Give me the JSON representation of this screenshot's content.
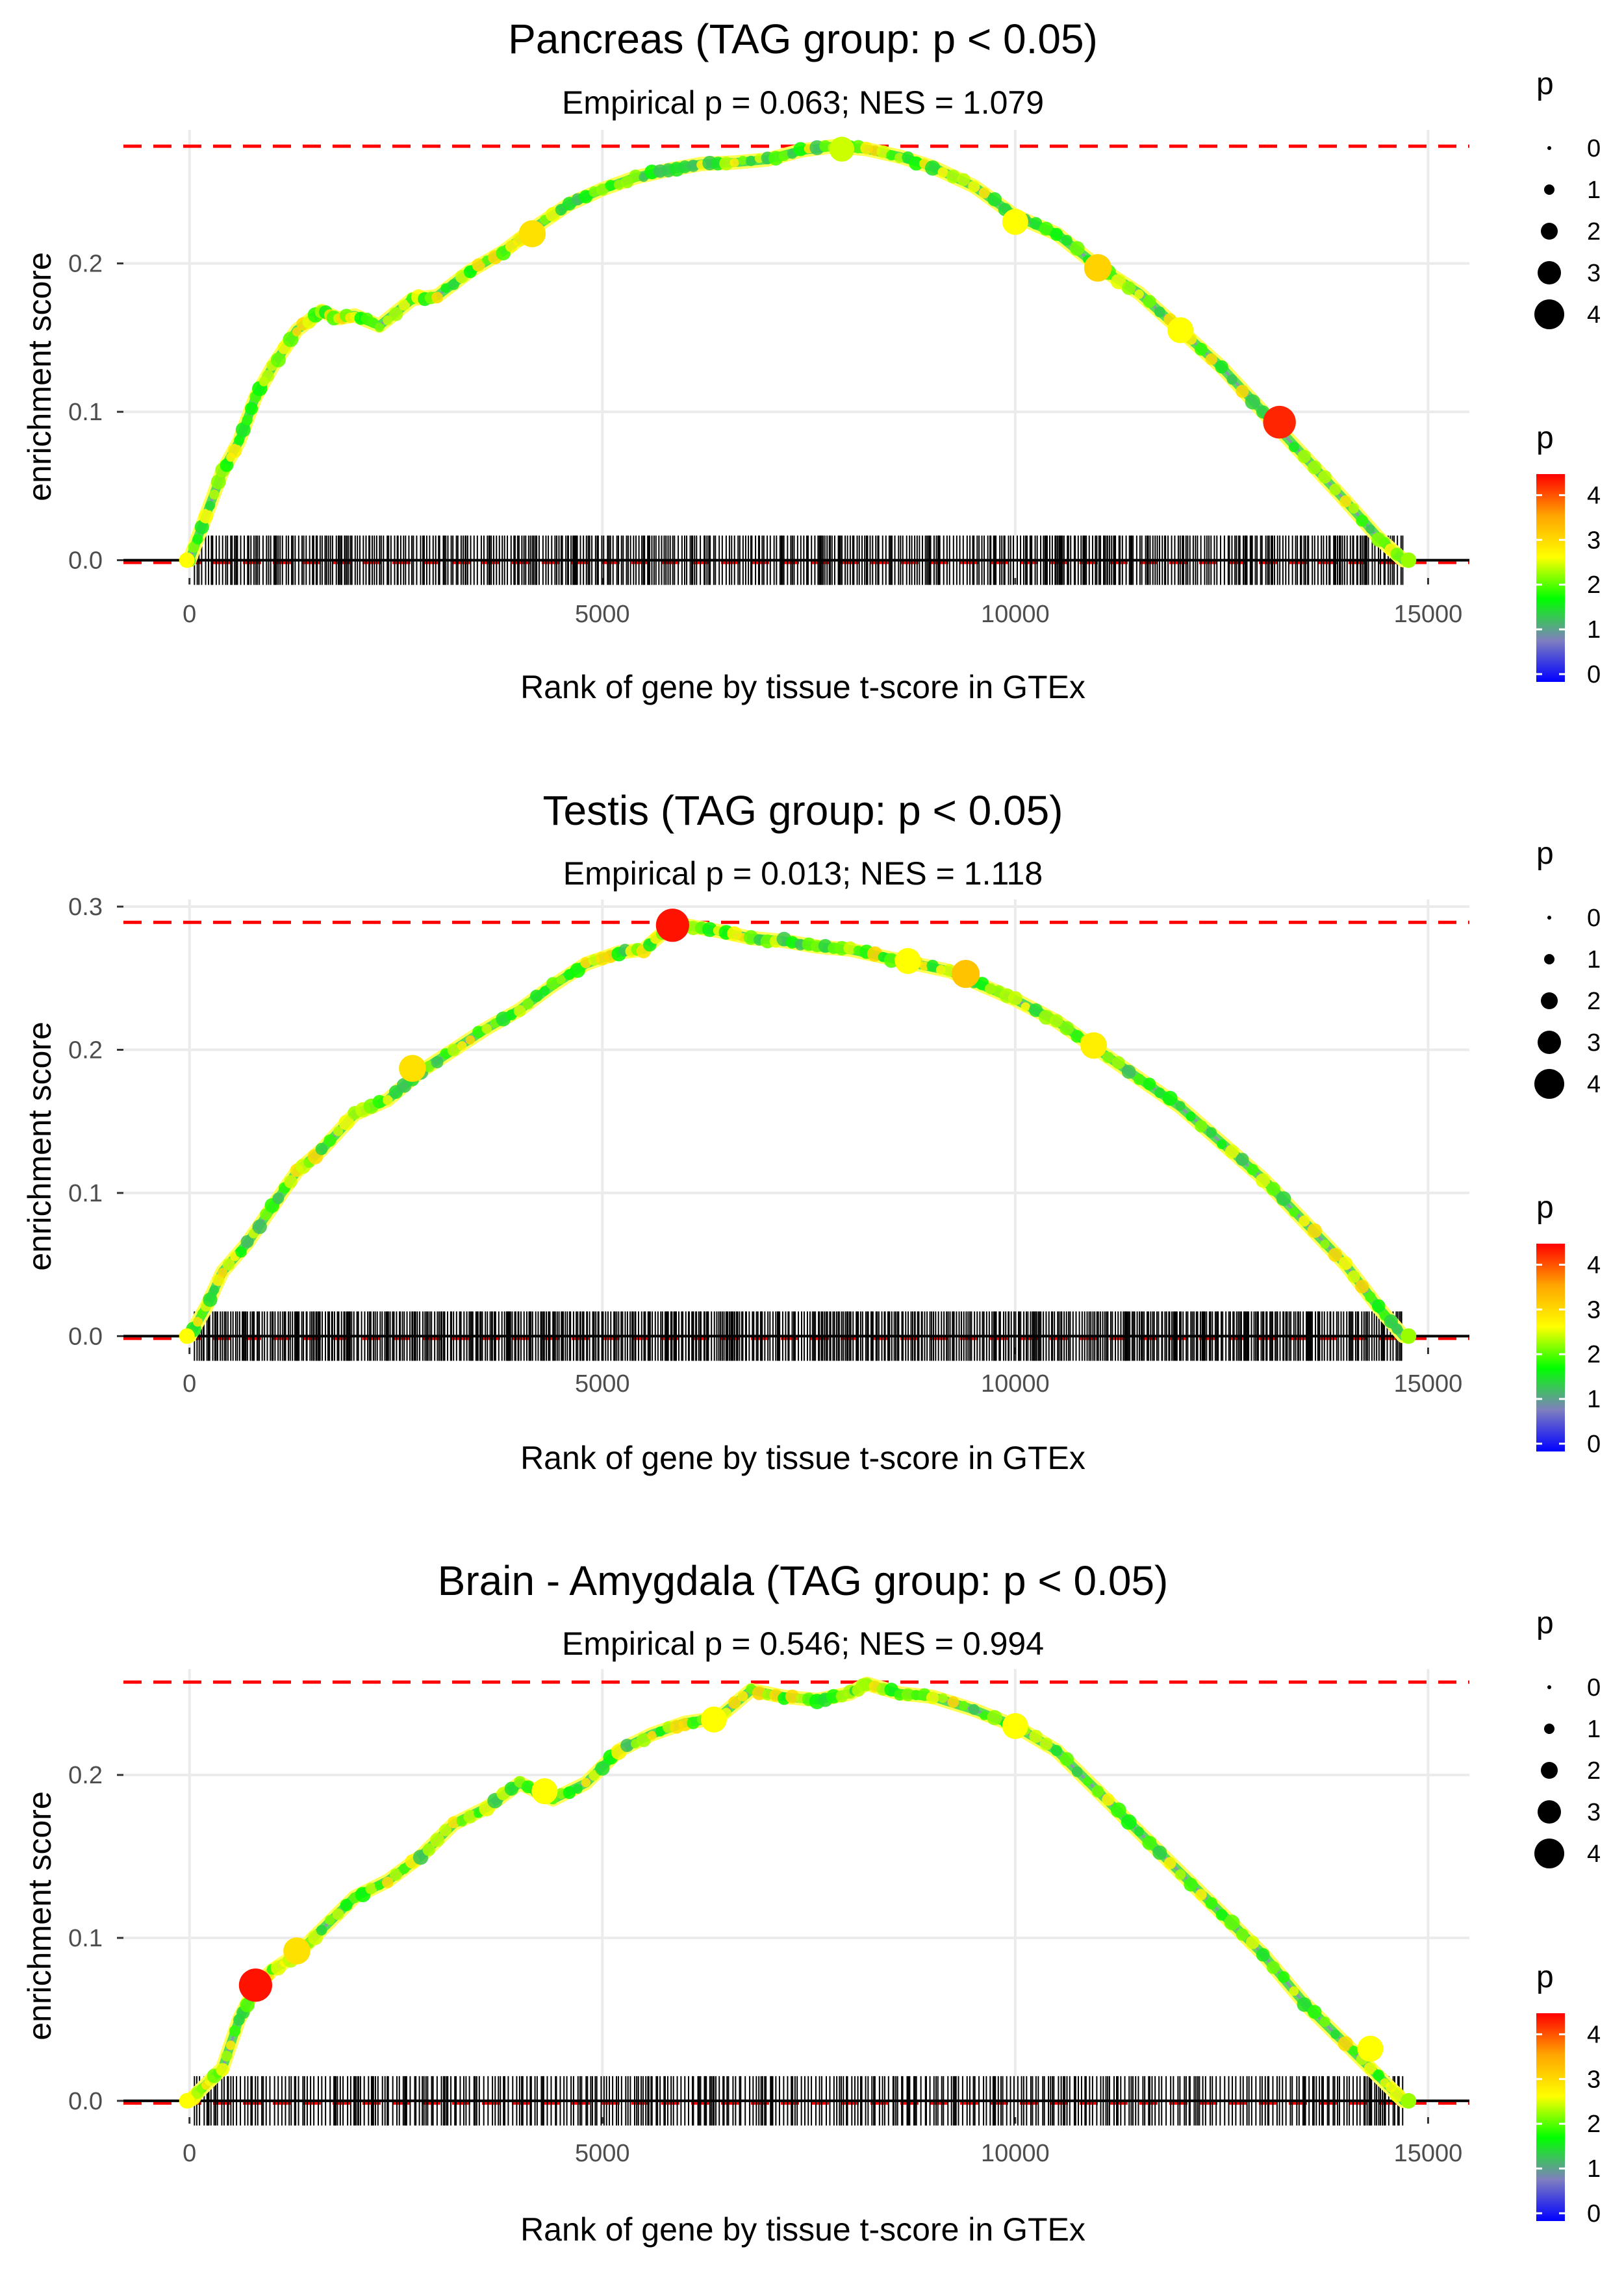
{
  "figure": {
    "xlabel": "Rank of gene by tissue t-score in GTEx",
    "ylabel": "enrichment score",
    "xticks": [
      0,
      5000,
      10000,
      15000
    ],
    "xlim": [
      -800,
      15500
    ],
    "legend": {
      "size_title": "p",
      "size_values": [
        0,
        1,
        2,
        3,
        4
      ],
      "color_title": "p",
      "color_values": [
        0,
        1,
        2,
        3,
        4
      ],
      "gradient_colors": [
        "#0000ff",
        "#7f7fbf",
        "#00ff00",
        "#ffff00",
        "#ffa500",
        "#ff0000"
      ]
    },
    "colors": {
      "ref_line": "#ff0000",
      "curve": "#44dd44",
      "ticks": "#000000",
      "grid": "#ebebeb"
    }
  },
  "chart_data": [
    {
      "type": "line",
      "title": "Pancreas (TAG group: p < 0.05)",
      "subtitle": "Empirical p = 0.063; NES = 1.079",
      "ylim": [
        -0.012,
        0.29
      ],
      "yticks": [
        "0.0",
        "0.1",
        "0.2"
      ],
      "max_es": 0.279,
      "x": [
        0,
        200,
        400,
        600,
        800,
        1000,
        1300,
        1600,
        1800,
        2000,
        2300,
        2700,
        3000,
        3400,
        3800,
        4200,
        4600,
        5000,
        5400,
        5800,
        6200,
        6600,
        7000,
        7400,
        7800,
        8200,
        8600,
        9000,
        9500,
        10000,
        10500,
        11000,
        11500,
        12000,
        12500,
        13000,
        13500,
        14000,
        14400,
        14700
      ],
      "y": [
        0.0,
        0.03,
        0.06,
        0.08,
        0.11,
        0.13,
        0.155,
        0.168,
        0.163,
        0.165,
        0.158,
        0.176,
        0.178,
        0.195,
        0.208,
        0.225,
        0.24,
        0.25,
        0.258,
        0.263,
        0.267,
        0.268,
        0.27,
        0.276,
        0.279,
        0.277,
        0.272,
        0.265,
        0.252,
        0.232,
        0.22,
        0.198,
        0.18,
        0.155,
        0.13,
        0.1,
        0.07,
        0.04,
        0.015,
        0.0
      ],
      "highlights": [
        {
          "x": 4150,
          "y": 0.22,
          "p": 3.2
        },
        {
          "x": 7900,
          "y": 0.277,
          "p": 2.8
        },
        {
          "x": 10000,
          "y": 0.228,
          "p": 3.0
        },
        {
          "x": 11000,
          "y": 0.197,
          "p": 3.3
        },
        {
          "x": 12000,
          "y": 0.155,
          "p": 3.0
        },
        {
          "x": 13200,
          "y": 0.093,
          "p": 4.3
        }
      ],
      "tick_density": 1.0
    },
    {
      "type": "line",
      "title": "Testis (TAG group: p < 0.05)",
      "subtitle": "Empirical p = 0.013; NES = 1.118",
      "ylim": [
        -0.008,
        0.305
      ],
      "yticks": [
        "0.0",
        "0.1",
        "0.2",
        "0.3"
      ],
      "max_es": 0.289,
      "x": [
        0,
        200,
        400,
        700,
        1000,
        1300,
        1600,
        2000,
        2400,
        2800,
        3200,
        3600,
        4000,
        4400,
        4800,
        5200,
        5500,
        5800,
        6000,
        6400,
        6800,
        7200,
        7600,
        8000,
        8400,
        8800,
        9200,
        9600,
        10000,
        10500,
        11000,
        11500,
        12000,
        12500,
        13000,
        13500,
        14000,
        14400,
        14700
      ],
      "y": [
        0.0,
        0.02,
        0.045,
        0.065,
        0.09,
        0.115,
        0.13,
        0.155,
        0.165,
        0.185,
        0.2,
        0.215,
        0.228,
        0.245,
        0.26,
        0.268,
        0.27,
        0.285,
        0.287,
        0.283,
        0.278,
        0.276,
        0.272,
        0.27,
        0.265,
        0.26,
        0.255,
        0.245,
        0.235,
        0.22,
        0.2,
        0.18,
        0.16,
        0.135,
        0.11,
        0.08,
        0.05,
        0.02,
        0.0
      ],
      "highlights": [
        {
          "x": 2700,
          "y": 0.187,
          "p": 3.2
        },
        {
          "x": 5850,
          "y": 0.287,
          "p": 4.4
        },
        {
          "x": 8700,
          "y": 0.262,
          "p": 3.0
        },
        {
          "x": 9400,
          "y": 0.253,
          "p": 3.4
        },
        {
          "x": 10950,
          "y": 0.203,
          "p": 3.1
        }
      ],
      "tick_density": 1.2
    },
    {
      "type": "line",
      "title": "Brain - Amygdala (TAG group: p < 0.05)",
      "subtitle": "Empirical p = 0.546; NES = 0.994",
      "ylim": [
        -0.01,
        0.265
      ],
      "yticks": [
        "0.0",
        "0.1",
        "0.2"
      ],
      "max_es": 0.257,
      "x": [
        0,
        200,
        400,
        600,
        800,
        1000,
        1300,
        1600,
        2000,
        2400,
        2800,
        3200,
        3600,
        4000,
        4400,
        4800,
        5200,
        5600,
        6000,
        6400,
        6800,
        7200,
        7600,
        8000,
        8200,
        8600,
        9000,
        9500,
        10000,
        10500,
        11000,
        11500,
        12000,
        12500,
        13000,
        13500,
        14000,
        14400,
        14700
      ],
      "y": [
        0.0,
        0.01,
        0.02,
        0.05,
        0.07,
        0.08,
        0.09,
        0.105,
        0.125,
        0.135,
        0.15,
        0.17,
        0.18,
        0.195,
        0.185,
        0.195,
        0.215,
        0.225,
        0.232,
        0.235,
        0.252,
        0.248,
        0.246,
        0.25,
        0.256,
        0.25,
        0.248,
        0.24,
        0.23,
        0.215,
        0.19,
        0.165,
        0.14,
        0.115,
        0.09,
        0.06,
        0.035,
        0.015,
        0.0
      ],
      "highlights": [
        {
          "x": 800,
          "y": 0.071,
          "p": 4.4
        },
        {
          "x": 1300,
          "y": 0.092,
          "p": 3.2
        },
        {
          "x": 4300,
          "y": 0.19,
          "p": 3.0
        },
        {
          "x": 6350,
          "y": 0.234,
          "p": 3.0
        },
        {
          "x": 10000,
          "y": 0.23,
          "p": 3.0
        },
        {
          "x": 14300,
          "y": 0.032,
          "p": 3.0
        }
      ],
      "tick_density": 0.85
    }
  ]
}
